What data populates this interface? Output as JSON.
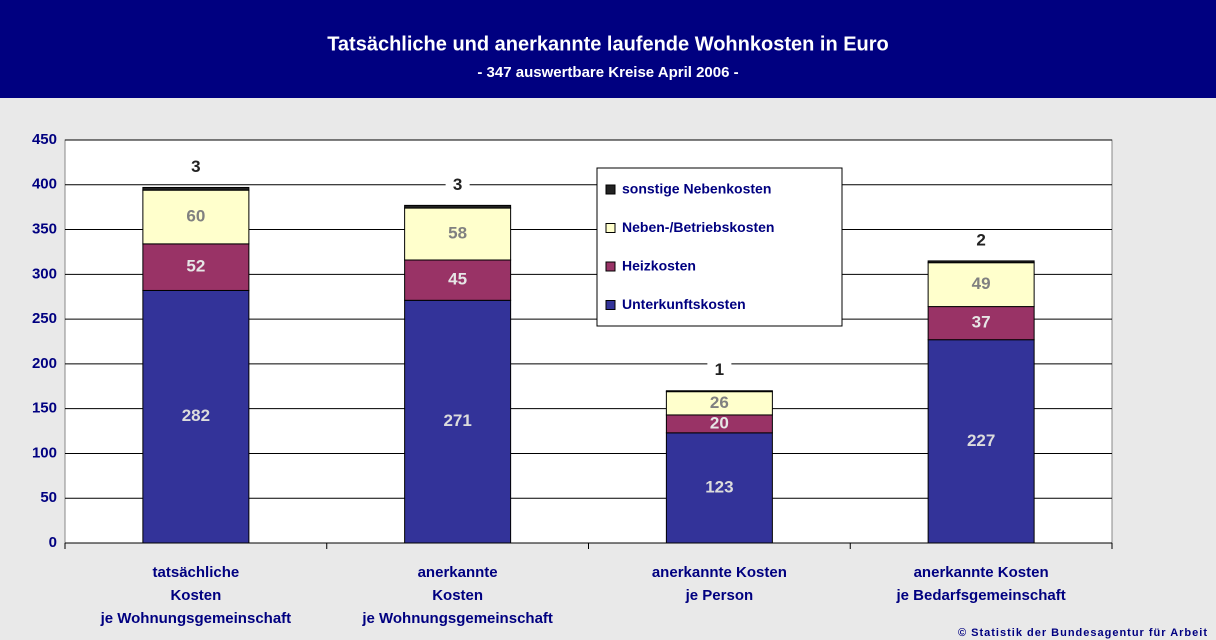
{
  "chart_data": {
    "type": "bar",
    "stacked": true,
    "title": "Tatsächliche und anerkannte laufende Wohnkosten in Euro",
    "subtitle": "- 347 auswertbare Kreise April 2006 -",
    "source": "© Statistik der Bundesagentur für Arbeit",
    "categories": [
      [
        "tatsächliche",
        "Kosten",
        "je Wohnungsgemeinschaft"
      ],
      [
        "anerkannte",
        "Kosten",
        "je Wohnungsgemeinschaft"
      ],
      [
        "anerkannte Kosten",
        "je Person"
      ],
      [
        "anerkannte Kosten",
        "je Bedarfsgemeinschaft"
      ]
    ],
    "series": [
      {
        "name": "Unterkunftskosten",
        "color": "#333399",
        "label_color": "#dcdcdc",
        "values": [
          282,
          271,
          123,
          227
        ]
      },
      {
        "name": "Heizkosten",
        "color": "#993366",
        "label_color": "#e6e6e6",
        "values": [
          52,
          45,
          20,
          37
        ]
      },
      {
        "name": "Neben-/Betriebskosten",
        "color": "#ffffcc",
        "label_color": "#808080",
        "values": [
          60,
          58,
          26,
          49
        ]
      },
      {
        "name": "sonstige Nebenkosten",
        "color": "#222222",
        "label_color": "#222222",
        "values": [
          3,
          3,
          1,
          2
        ]
      }
    ],
    "ylim": [
      0,
      450
    ],
    "yticks": [
      0,
      50,
      100,
      150,
      200,
      250,
      300,
      350,
      400,
      450
    ],
    "grid": true
  }
}
